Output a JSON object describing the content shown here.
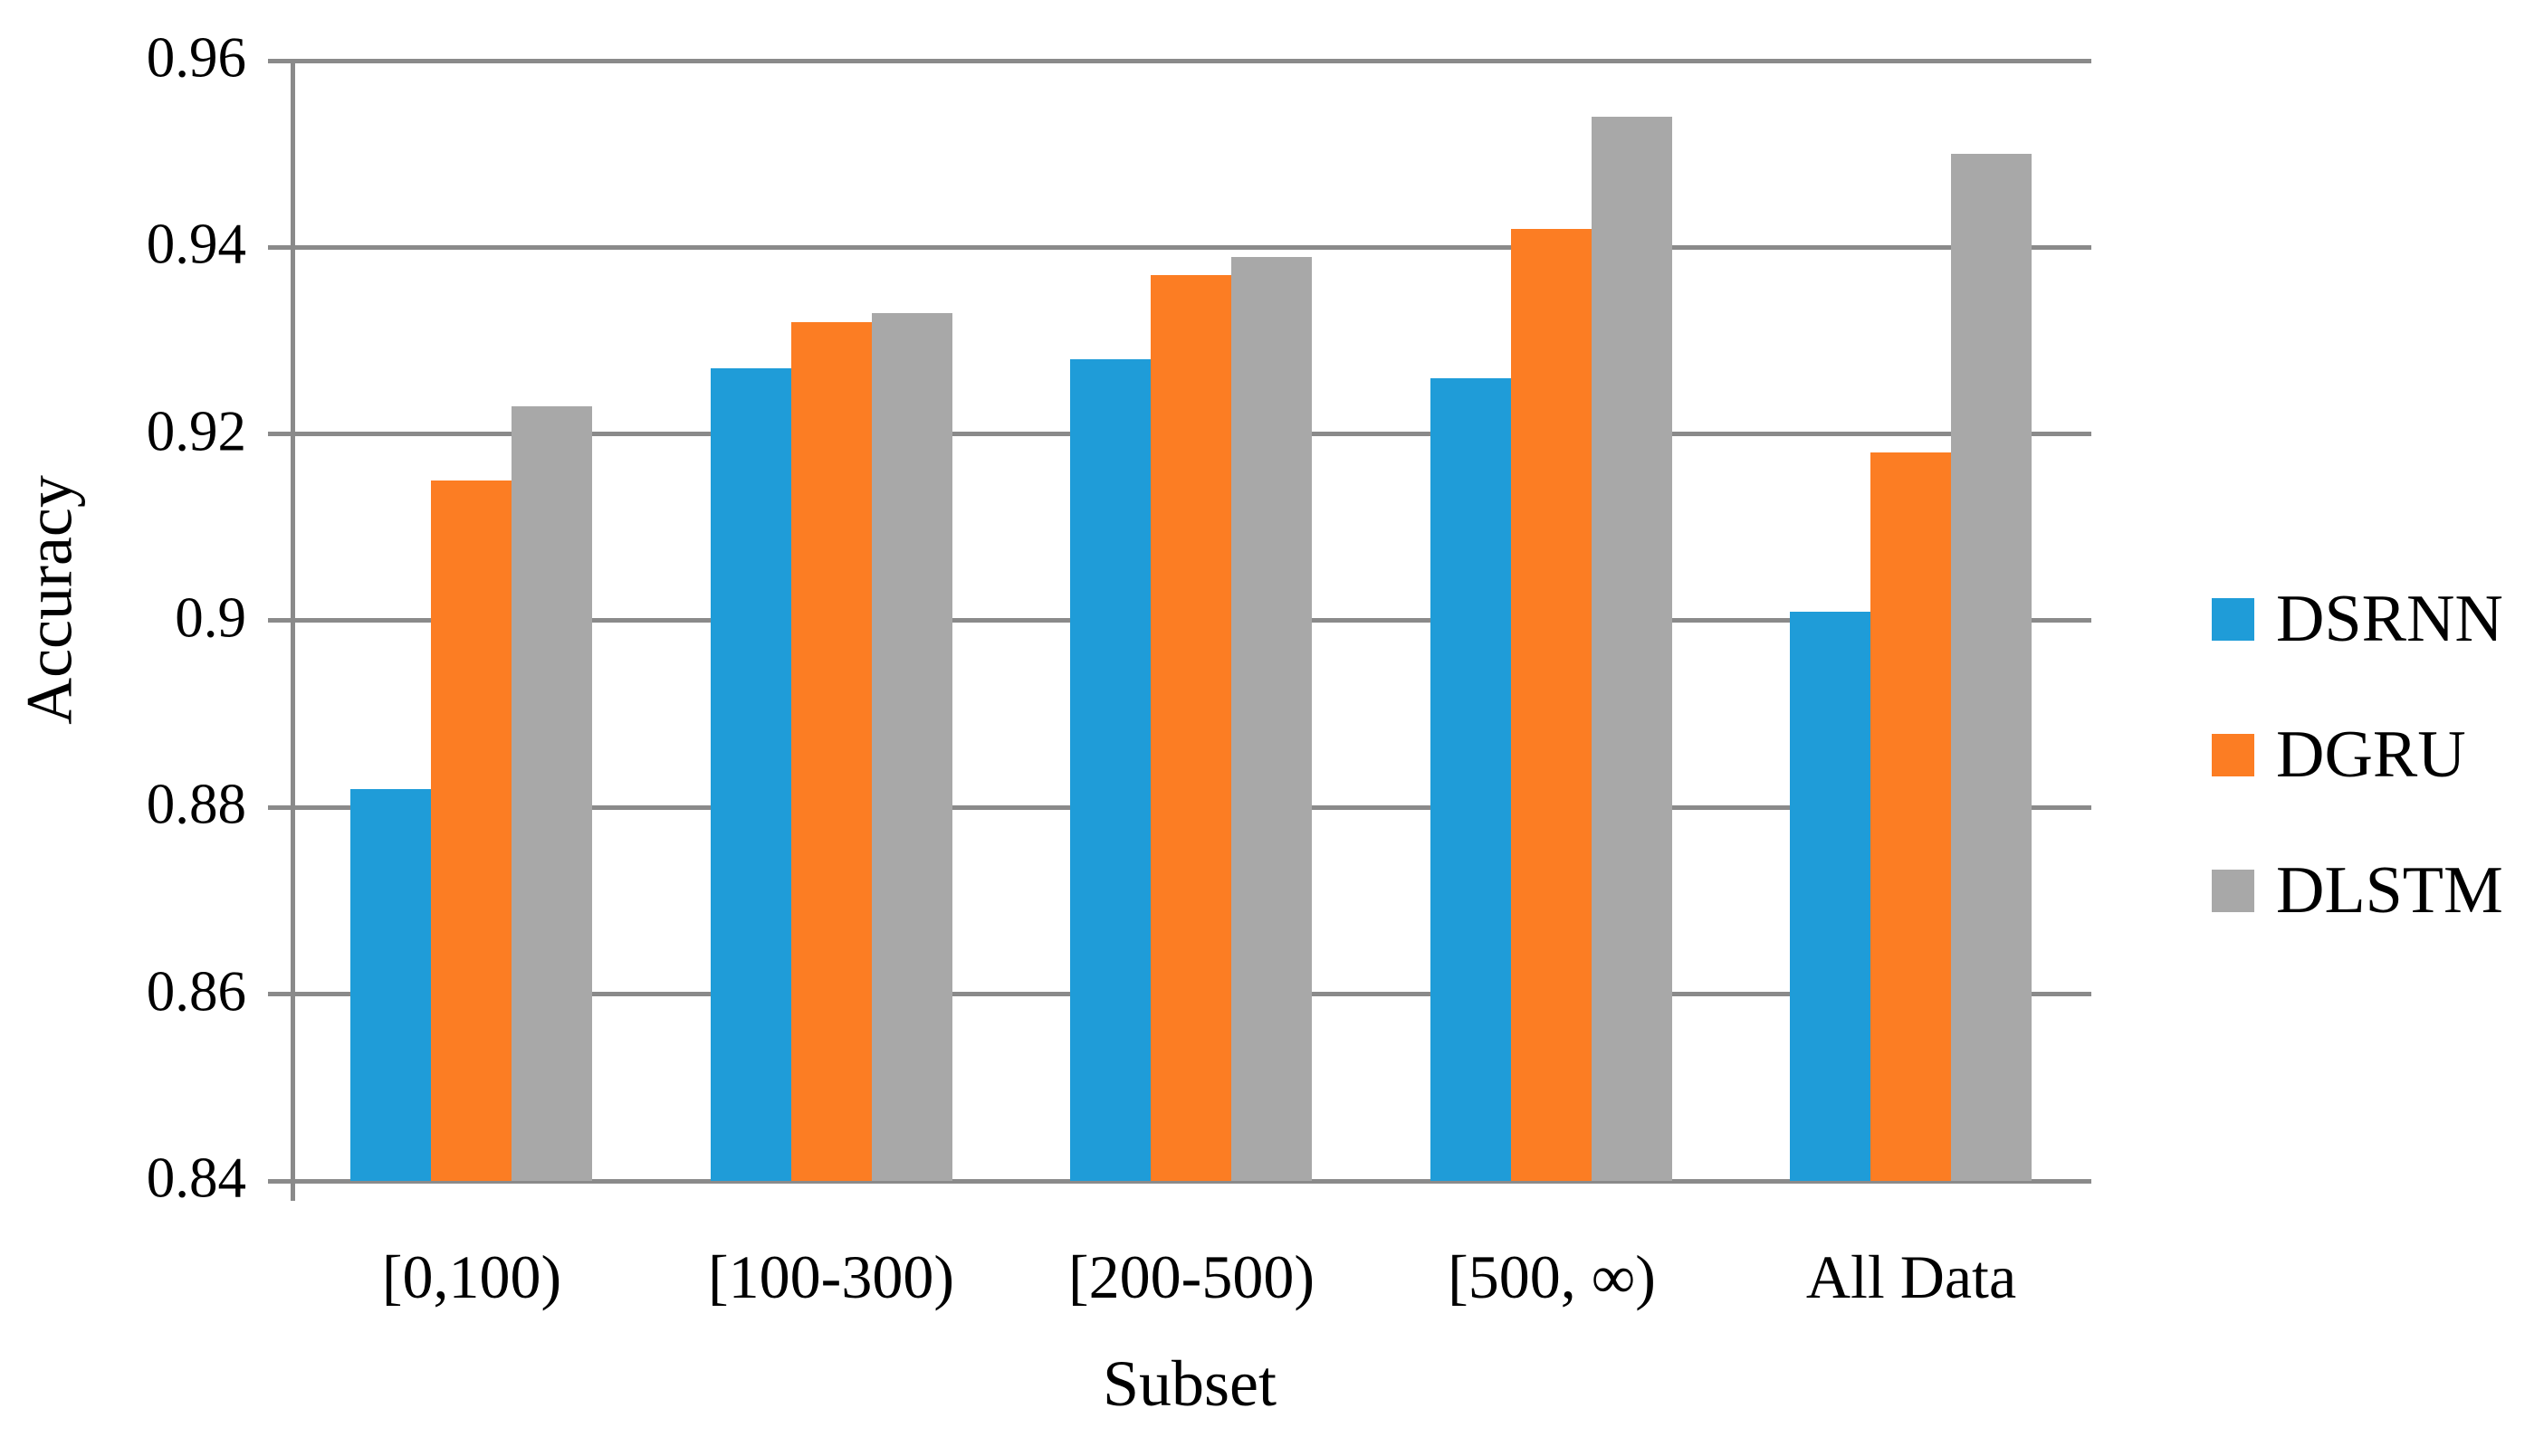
{
  "figure": {
    "background": "#FFFFFF",
    "text_color": "#000000"
  },
  "chart_data": {
    "type": "bar",
    "title": "",
    "xlabel": "Subset",
    "ylabel": "Accuracy",
    "categories": [
      "[0,100)",
      "[100-300)",
      "[200-500)",
      "[500, ∞)",
      "All Data"
    ],
    "series": [
      {
        "name": "DSRNN",
        "color": "#1F9CD8",
        "values": [
          0.882,
          0.927,
          0.928,
          0.926,
          0.901
        ]
      },
      {
        "name": "DGRU",
        "color": "#FC7D23",
        "values": [
          0.915,
          0.932,
          0.937,
          0.942,
          0.918
        ]
      },
      {
        "name": "DLSTM",
        "color": "#A8A8A8",
        "values": [
          0.923,
          0.933,
          0.939,
          0.954,
          0.95
        ]
      }
    ],
    "ylim": [
      0.84,
      0.96
    ],
    "ytick_values": [
      0.84,
      0.86,
      0.88,
      0.9,
      0.92,
      0.94,
      0.96
    ],
    "ytick_labels": [
      "0.84",
      "0.86",
      "0.88",
      "0.9",
      "0.92",
      "0.94",
      "0.96"
    ],
    "grid": true,
    "legend_position": "right",
    "legend_labels": [
      "DSRNN",
      "DGRU",
      "DLSTM"
    ],
    "axis_color": "#8A8A8A",
    "gridline_color": "#8A8A8A"
  }
}
